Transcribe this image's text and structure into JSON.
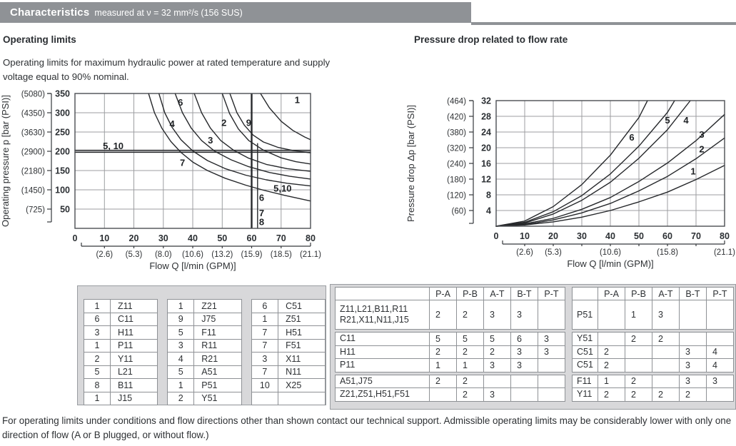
{
  "header": {
    "title": "Characteristics",
    "subtitle": "measured at ν = 32 mm²/s (156 SUS)"
  },
  "left_section": {
    "heading": "Operating limits",
    "description": "Operating limits for maximum hydraulic power at rated temperature and supply voltage equal to 90% nominal."
  },
  "right_section": {
    "heading": "Pressure drop related to flow rate"
  },
  "footnote": "For operating limits under conditions and flow directions other than shown contact our technical support. Admissible operating limits may be considerably lower with only one direction of flow (A or B plugged, or without flow.)",
  "chart_data": [
    {
      "type": "line",
      "title": "Operating limits",
      "xlabel": "Flow Q [l/min (GPM)]",
      "ylabel": "Operating pressure p [bar (PSI)]",
      "xlim": [
        0,
        80
      ],
      "ylim": [
        0,
        350
      ],
      "grid": true,
      "x_ticks": [
        0,
        10,
        20,
        30,
        40,
        50,
        60,
        70,
        80
      ],
      "x_ticks_gpm": [
        "",
        "(2.6)",
        "(5.3)",
        "(8.0)",
        "(10.6)",
        "(13.2)",
        "(15.9)",
        "(18.5)",
        "(21.1)"
      ],
      "y_ticks": [
        350,
        300,
        250,
        200,
        150,
        100,
        50
      ],
      "y_ticks_psi": [
        "(5080)",
        "(4350)",
        "(3630)",
        "(2900)",
        "(2180)",
        "(1450)",
        "(725)"
      ],
      "hlines": [
        {
          "y": 200,
          "style": "double",
          "label": "5, 10"
        }
      ],
      "vlines": [
        {
          "x": 60,
          "thick": true
        },
        {
          "x": 62,
          "from": 220,
          "to": 0
        }
      ],
      "series": [
        {
          "name": "7",
          "points": [
            [
              25,
              350
            ],
            [
              27,
              300
            ],
            [
              29.5,
              260
            ],
            [
              32.5,
              226
            ],
            [
              36,
              197
            ],
            [
              40,
              172
            ],
            [
              45,
              150
            ],
            [
              51,
              130
            ],
            [
              58,
              112
            ],
            [
              64,
              99
            ],
            [
              71,
              86
            ],
            [
              80,
              71
            ]
          ]
        },
        {
          "name": "4",
          "points": [
            [
              28.5,
              350
            ],
            [
              30.5,
              300
            ],
            [
              33,
              262
            ],
            [
              36,
              230
            ],
            [
              40,
              201
            ],
            [
              45,
              176
            ],
            [
              51,
              155
            ],
            [
              58,
              138
            ],
            [
              65,
              126
            ],
            [
              72,
              117
            ],
            [
              80,
              110
            ]
          ]
        },
        {
          "name": "6",
          "points": [
            [
              34,
              350
            ],
            [
              36.5,
              300
            ],
            [
              39.5,
              260
            ],
            [
              43,
              228
            ],
            [
              47.5,
              200
            ],
            [
              53,
              178
            ],
            [
              59,
              160
            ],
            [
              66,
              145
            ],
            [
              73,
              135
            ],
            [
              80,
              128
            ]
          ]
        },
        {
          "name": "3",
          "points": [
            [
              40.5,
              350
            ],
            [
              43,
              300
            ],
            [
              46,
              260
            ],
            [
              49.5,
              228
            ],
            [
              54,
              202
            ],
            [
              59,
              182
            ],
            [
              65,
              166
            ],
            [
              72,
              155
            ],
            [
              80,
              148
            ]
          ]
        },
        {
          "name": "2",
          "points": [
            [
              50,
              350
            ],
            [
              52.5,
              298
            ],
            [
              55.5,
              258
            ],
            [
              59,
              228
            ],
            [
              64,
              203
            ],
            [
              70,
              183
            ],
            [
              75,
              173
            ],
            [
              80,
              167
            ]
          ]
        },
        {
          "name": "9",
          "points": [
            [
              52.6,
              350
            ],
            [
              55,
              300
            ],
            [
              57.5,
              268
            ],
            [
              60.5,
              242
            ],
            [
              64,
              224
            ],
            [
              69,
              210
            ],
            [
              74,
              202
            ],
            [
              80,
              196
            ]
          ]
        },
        {
          "name": "1",
          "points": [
            [
              63,
              350
            ],
            [
              66,
              313
            ],
            [
              70,
              278
            ],
            [
              74,
              254
            ],
            [
              78,
              237
            ],
            [
              80,
              230
            ]
          ]
        }
      ],
      "labels": [
        {
          "text": "5, 10",
          "x": 13,
          "y": 214
        },
        {
          "text": "6",
          "x": 35.8,
          "y": 327
        },
        {
          "text": "4",
          "x": 33,
          "y": 271
        },
        {
          "text": "2",
          "x": 50.6,
          "y": 274
        },
        {
          "text": "9",
          "x": 59,
          "y": 274
        },
        {
          "text": "3",
          "x": 46,
          "y": 229
        },
        {
          "text": "7",
          "x": 36.5,
          "y": 170
        },
        {
          "text": "1",
          "x": 75.5,
          "y": 333
        },
        {
          "text": "5,10",
          "x": 70.5,
          "y": 104
        },
        {
          "text": "6",
          "x": 63.4,
          "y": 80
        },
        {
          "text": "7",
          "x": 63.4,
          "y": 40
        },
        {
          "text": "8",
          "x": 63.4,
          "y": 17
        }
      ]
    },
    {
      "type": "line",
      "title": "Pressure drop related to flow rate",
      "xlabel": "Flow Q [l/min (GPM)]",
      "ylabel": "Pressure drop Δp [bar (PSI)]",
      "xlim": [
        0,
        80
      ],
      "ylim": [
        0,
        32
      ],
      "grid": true,
      "x_ticks": [
        0,
        10,
        20,
        30,
        40,
        50,
        60,
        70,
        80
      ],
      "x_ticks_gpm": [
        "",
        "(2.6)",
        "(5.3)",
        "",
        "(10.6)",
        "",
        "(15.8)",
        "",
        "(21.1)"
      ],
      "y_ticks": [
        32,
        28,
        24,
        20,
        16,
        12,
        8,
        4
      ],
      "y_ticks_psi": [
        "(464)",
        "(420)",
        "(380)",
        "(320)",
        "(240)",
        "(180)",
        "(120)",
        "(60)"
      ],
      "series": [
        {
          "name": "6",
          "points": [
            [
              0,
              0
            ],
            [
              10,
              1.3
            ],
            [
              20,
              5
            ],
            [
              30,
              10.6
            ],
            [
              40,
              18.1
            ],
            [
              50,
              27.7
            ],
            [
              53,
              32
            ]
          ]
        },
        {
          "name": "5",
          "points": [
            [
              0,
              0
            ],
            [
              10,
              1
            ],
            [
              20,
              3.7
            ],
            [
              30,
              7.8
            ],
            [
              40,
              13.3
            ],
            [
              50,
              20.4
            ],
            [
              60,
              29
            ],
            [
              62.5,
              32
            ]
          ]
        },
        {
          "name": "4",
          "points": [
            [
              0,
              0
            ],
            [
              10,
              0.8
            ],
            [
              20,
              3.1
            ],
            [
              30,
              6.6
            ],
            [
              40,
              11.2
            ],
            [
              50,
              17.3
            ],
            [
              60,
              24.6
            ],
            [
              68,
              32
            ]
          ]
        },
        {
          "name": "3",
          "points": [
            [
              0,
              0
            ],
            [
              10,
              0.6
            ],
            [
              20,
              2
            ],
            [
              30,
              4.3
            ],
            [
              40,
              7.3
            ],
            [
              50,
              11.4
            ],
            [
              60,
              16.1
            ],
            [
              70,
              21.8
            ],
            [
              80,
              28.5
            ]
          ]
        },
        {
          "name": "2",
          "points": [
            [
              0,
              0
            ],
            [
              10,
              0.4
            ],
            [
              20,
              1.6
            ],
            [
              30,
              3.4
            ],
            [
              40,
              5.8
            ],
            [
              50,
              9
            ],
            [
              60,
              12.7
            ],
            [
              70,
              17.2
            ],
            [
              80,
              22.5
            ]
          ]
        },
        {
          "name": "1",
          "points": [
            [
              0,
              0
            ],
            [
              10,
              0.3
            ],
            [
              20,
              1.1
            ],
            [
              30,
              2.3
            ],
            [
              40,
              4
            ],
            [
              50,
              6.2
            ],
            [
              60,
              8.7
            ],
            [
              70,
              11.9
            ],
            [
              80,
              15.5
            ]
          ]
        }
      ],
      "labels": [
        {
          "text": "6",
          "x": 47.5,
          "y": 22.6
        },
        {
          "text": "5",
          "x": 60,
          "y": 27
        },
        {
          "text": "4",
          "x": 66.5,
          "y": 27
        },
        {
          "text": "3",
          "x": 72,
          "y": 23.4
        },
        {
          "text": "2",
          "x": 72,
          "y": 19.6
        },
        {
          "text": "1",
          "x": 69,
          "y": 14
        }
      ]
    }
  ],
  "spool_table": {
    "groups": [
      {
        "rows": [
          [
            "1",
            "Z11"
          ],
          [
            "6",
            "C11"
          ],
          [
            "3",
            "H11"
          ],
          [
            "1",
            "P11"
          ],
          [
            "2",
            "Y11"
          ],
          [
            "5",
            "L21"
          ],
          [
            "8",
            "B11"
          ],
          [
            "1",
            "J15"
          ]
        ]
      },
      {
        "rows": [
          [
            "1",
            "Z21"
          ],
          [
            "9",
            "J75"
          ],
          [
            "5",
            "F11"
          ],
          [
            "3",
            "R11"
          ],
          [
            "4",
            "R21"
          ],
          [
            "5",
            "A51"
          ],
          [
            "1",
            "P51"
          ],
          [
            "2",
            "Y51"
          ]
        ]
      },
      {
        "rows": [
          [
            "6",
            "C51"
          ],
          [
            "1",
            "Z51"
          ],
          [
            "7",
            "H51"
          ],
          [
            "7",
            "F51"
          ],
          [
            "3",
            "X11"
          ],
          [
            "7",
            "N11"
          ],
          [
            "10",
            "X25"
          ],
          [
            "",
            ""
          ]
        ]
      }
    ]
  },
  "pressure_table": {
    "headers": [
      "",
      "P-A",
      "P-B",
      "A-T",
      "B-T",
      "P-T"
    ],
    "left": {
      "rows": [
        {
          "name": "Z11,L21,B11,R11\nR21,X11,N11,J15",
          "values": [
            "2",
            "2",
            "3",
            "3",
            ""
          ]
        },
        {
          "name": "C11",
          "values": [
            "5",
            "5",
            "5",
            "6",
            "3"
          ]
        },
        {
          "name": "H11",
          "values": [
            "2",
            "2",
            "2",
            "3",
            "3"
          ]
        },
        {
          "name": "P11",
          "values": [
            "1",
            "1",
            "3",
            "3",
            ""
          ]
        },
        {
          "name": "A51,J75",
          "values": [
            "2",
            "2",
            "",
            "",
            ""
          ]
        },
        {
          "name": "Z21,Z51,H51,F51",
          "values": [
            "",
            "2",
            "3",
            "",
            ""
          ]
        }
      ]
    },
    "right": {
      "rows": [
        {
          "name": "P51",
          "values": [
            "",
            "1",
            "3",
            "",
            ""
          ]
        },
        {
          "name": "Y51",
          "values": [
            "",
            "2",
            "2",
            "",
            ""
          ]
        },
        {
          "name": "C51",
          "values": [
            "2",
            "",
            "",
            "3",
            "4"
          ]
        },
        {
          "name": "C51",
          "values": [
            "2",
            "",
            "",
            "3",
            "4"
          ]
        },
        {
          "name": "F11",
          "values": [
            "1",
            "2",
            "",
            "3",
            "3"
          ]
        },
        {
          "name": "Y11",
          "values": [
            "2",
            "2",
            "2",
            "2",
            ""
          ]
        }
      ]
    }
  }
}
